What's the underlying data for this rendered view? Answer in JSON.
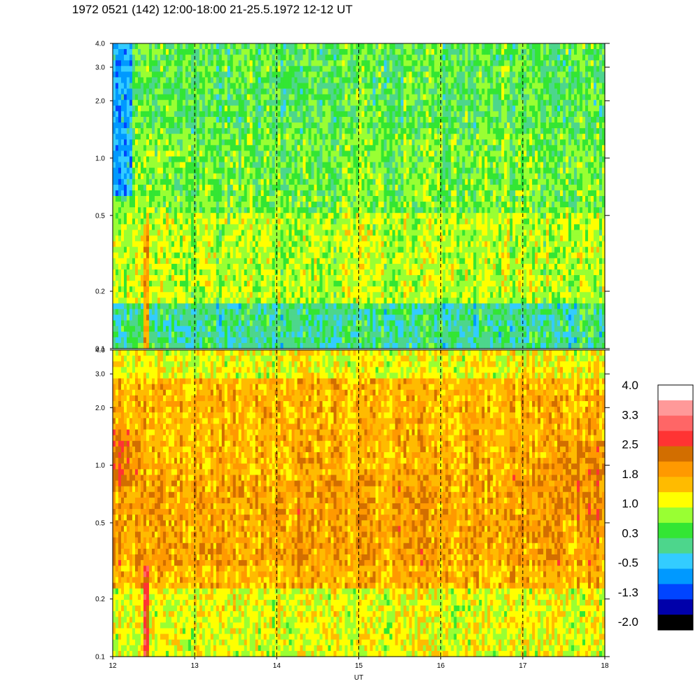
{
  "title": "1972 0521 (142) 12:00-18:00 21-25.5.1972  12-12 UT",
  "chart_data": [
    {
      "type": "heatmap",
      "panel": "top",
      "x": {
        "label": "",
        "range": [
          12,
          18
        ],
        "ticks": [
          "12",
          "13",
          "14",
          "15",
          "16",
          "17",
          "18"
        ],
        "tick_labels_shown": false
      },
      "y": {
        "label": "",
        "scale": "log",
        "range": [
          0.1,
          4.0
        ],
        "ticks": [
          0.1,
          0.2,
          0.5,
          1.0,
          2.0,
          3.0,
          4.0
        ],
        "tick_labels": [
          "0.1",
          "0.2",
          "0.5",
          "1.0",
          "2.0",
          "3.0",
          "4.0"
        ]
      },
      "vertical_dashed_lines_at": [
        13,
        14,
        15,
        16,
        17
      ],
      "dominant_levels": "0.3 to 1.0 (green/yellow) with blue streaks near 12.1-12.2 UT at 1.0-3.0"
    },
    {
      "type": "heatmap",
      "panel": "bottom",
      "x": {
        "label": "UT",
        "range": [
          12,
          18
        ],
        "ticks": [
          12,
          13,
          14,
          15,
          16,
          17,
          18
        ],
        "tick_labels": [
          "12",
          "13",
          "14",
          "15",
          "16",
          "17",
          "18"
        ]
      },
      "y": {
        "label": "",
        "scale": "log",
        "range": [
          0.1,
          4.0
        ],
        "ticks": [
          0.1,
          0.2,
          0.5,
          1.0,
          2.0,
          3.0,
          4.0
        ],
        "tick_labels": [
          "0.1",
          "0.2",
          "0.5",
          "1.0",
          "2.0",
          "3.0",
          "4.0"
        ]
      },
      "vertical_dashed_lines_at": [
        13,
        14,
        15,
        16,
        17
      ],
      "dominant_levels": "1.0 to 2.5 (yellow/orange), red column near 12.4 UT at 0.1-0.3"
    }
  ],
  "colorbar": {
    "labels": [
      "4.0",
      "3.3",
      "2.5",
      "1.8",
      "1.0",
      "0.3",
      "-0.5",
      "-1.3",
      "-2.0"
    ],
    "colors": [
      "#ffffff",
      "#ff9999",
      "#ff6666",
      "#ff3333",
      "#d26e00",
      "#ff9900",
      "#ffbb00",
      "#ffff00",
      "#99ff33",
      "#33e633",
      "#4dd68c",
      "#33ccff",
      "#0099ff",
      "#0044ff",
      "#0000aa",
      "#000000"
    ]
  },
  "colors": {
    "axis": "#000000",
    "background": "#ffffff"
  }
}
